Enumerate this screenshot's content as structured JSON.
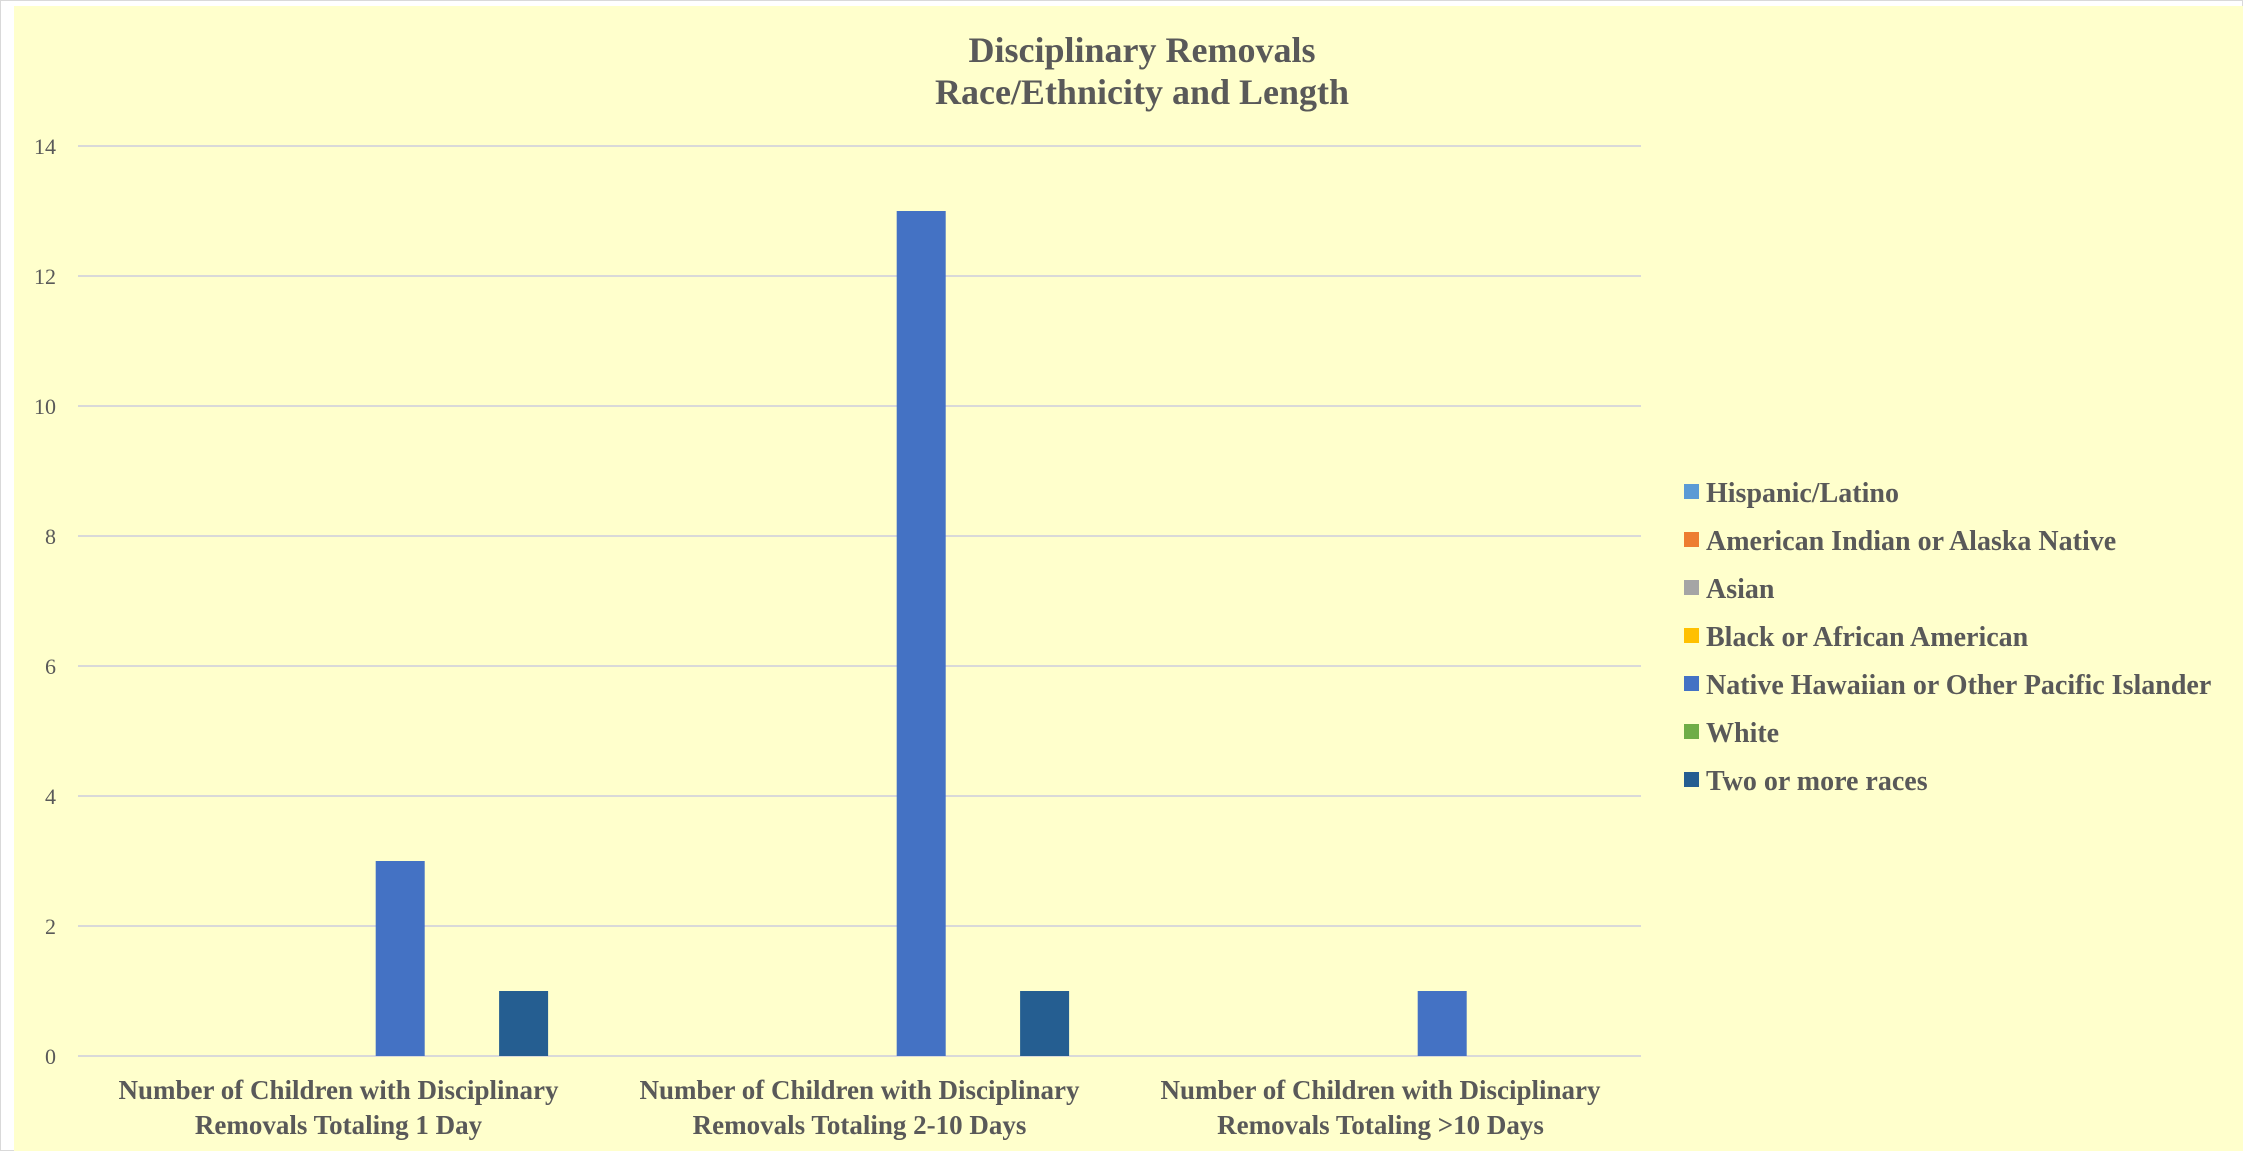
{
  "colors": {
    "background": "#FFFFCC",
    "gridline": "#D9D9D9",
    "text": "#595959"
  },
  "chart_data": {
    "type": "bar",
    "title": [
      "Disciplinary Removals",
      "Race/Ethnicity and Length"
    ],
    "xlabel": "",
    "ylabel": "",
    "ylim": [
      0,
      14
    ],
    "yticks": [
      0,
      2,
      4,
      6,
      8,
      10,
      12,
      14
    ],
    "grid": true,
    "legend_position": "right",
    "categories": [
      [
        "Number of Children with Disciplinary",
        "Removals Totaling 1 Day"
      ],
      [
        "Number of Children with Disciplinary",
        "Removals Totaling 2-10 Days"
      ],
      [
        "Number of Children with Disciplinary",
        "Removals Totaling >10 Days"
      ]
    ],
    "series": [
      {
        "name": "Hispanic/Latino",
        "color": "#5B9BD5",
        "values": [
          0,
          0,
          0
        ]
      },
      {
        "name": "American Indian or Alaska Native",
        "color": "#ED7D31",
        "values": [
          0,
          0,
          0
        ]
      },
      {
        "name": "Asian",
        "color": "#A5A5A5",
        "values": [
          0,
          0,
          0
        ]
      },
      {
        "name": "Black or African American",
        "color": "#FFC000",
        "values": [
          0,
          0,
          0
        ]
      },
      {
        "name": "Native Hawaiian or Other Pacific Islander",
        "color": "#4472C4",
        "values": [
          3,
          13,
          1
        ]
      },
      {
        "name": "White",
        "color": "#70AD47",
        "values": [
          0,
          0,
          0
        ]
      },
      {
        "name": "Two or more races",
        "color": "#255E91",
        "values": [
          1,
          1,
          0
        ]
      }
    ]
  }
}
